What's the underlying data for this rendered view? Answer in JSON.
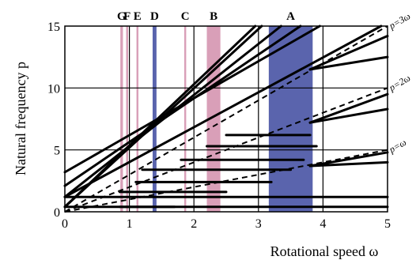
{
  "chart_data": {
    "type": "line",
    "xlabel": "Rotational speed  ω",
    "ylabel": "Natural frequency  p",
    "xlim": [
      0,
      5
    ],
    "ylim": [
      0,
      15
    ],
    "x_ticks": [
      "0",
      "1",
      "2",
      "3",
      "4",
      "5"
    ],
    "y_ticks": [
      "0",
      "5",
      "10",
      "15"
    ],
    "grid": true,
    "colors": {
      "pink": "#d99fb8",
      "blue": "#5a64ad",
      "line": "#000000"
    },
    "zones": [
      {
        "label": "G",
        "x": [
          0.86,
          0.9
        ],
        "color": "pink"
      },
      {
        "label": "F",
        "x": [
          0.95,
          0.98
        ],
        "color": "pink"
      },
      {
        "label": "E",
        "x": [
          1.11,
          1.14
        ],
        "color": "pink"
      },
      {
        "label": "D",
        "x": [
          1.36,
          1.42
        ],
        "color": "blue"
      },
      {
        "label": "C",
        "x": [
          1.85,
          1.88
        ],
        "color": "pink"
      },
      {
        "label": "B",
        "x": [
          2.2,
          2.41
        ],
        "color": "pink"
      },
      {
        "label": "A",
        "x": [
          3.16,
          3.84
        ],
        "color": "blue"
      }
    ],
    "reference_lines": [
      {
        "label": "p=3ω",
        "slope": 3
      },
      {
        "label": "p=2ω",
        "slope": 2
      },
      {
        "label": "p=ω",
        "slope": 1
      }
    ],
    "curves": [
      {
        "name": "",
        "x": [
          0,
          2.95
        ],
        "y": [
          0.4,
          15
        ]
      },
      {
        "name": "",
        "x": [
          0,
          3.05
        ],
        "y": [
          0.4,
          15
        ]
      },
      {
        "name": "",
        "x": [
          0,
          3.35
        ],
        "y": [
          1.2,
          15
        ]
      },
      {
        "name": "",
        "x": [
          0,
          3.65
        ],
        "y": [
          2.1,
          15
        ]
      },
      {
        "name": "",
        "x": [
          0,
          3.95
        ],
        "y": [
          3.2,
          15
        ]
      },
      {
        "name": "",
        "x": [
          0,
          4.9
        ],
        "y": [
          1.2,
          15
        ]
      },
      {
        "name": "",
        "x": [
          0.85,
          1.7
        ],
        "y": [
          0.4,
          0.4
        ]
      },
      {
        "name": "",
        "x": [
          0.85,
          2.5
        ],
        "y": [
          1.6,
          1.6
        ]
      },
      {
        "name": "",
        "x": [
          1.1,
          3.2
        ],
        "y": [
          2.4,
          2.4
        ]
      },
      {
        "name": "",
        "x": [
          1.2,
          3.5
        ],
        "y": [
          3.4,
          3.4
        ]
      },
      {
        "name": "",
        "x": [
          1.8,
          3.7
        ],
        "y": [
          4.2,
          4.2
        ]
      },
      {
        "name": "",
        "x": [
          2.2,
          3.9
        ],
        "y": [
          5.3,
          5.3
        ]
      },
      {
        "name": "",
        "x": [
          2.5,
          3.8
        ],
        "y": [
          6.2,
          6.2
        ]
      },
      {
        "name": "",
        "x": [
          0,
          5
        ],
        "y": [
          0.4,
          0.4
        ]
      },
      {
        "name": "",
        "x": [
          0,
          5
        ],
        "y": [
          1.2,
          1.2
        ]
      },
      {
        "name": "",
        "x": [
          3.8,
          5
        ],
        "y": [
          11.5,
          14.2
        ]
      },
      {
        "name": "",
        "x": [
          3.8,
          5
        ],
        "y": [
          11.5,
          12.5
        ]
      },
      {
        "name": "",
        "x": [
          3.8,
          5
        ],
        "y": [
          7.2,
          9.5
        ]
      },
      {
        "name": "",
        "x": [
          3.8,
          5
        ],
        "y": [
          7.2,
          8.3
        ]
      },
      {
        "name": "",
        "x": [
          3.8,
          5
        ],
        "y": [
          3.7,
          4.8
        ]
      },
      {
        "name": "",
        "x": [
          3.8,
          5
        ],
        "y": [
          3.7,
          4.0
        ]
      }
    ]
  }
}
